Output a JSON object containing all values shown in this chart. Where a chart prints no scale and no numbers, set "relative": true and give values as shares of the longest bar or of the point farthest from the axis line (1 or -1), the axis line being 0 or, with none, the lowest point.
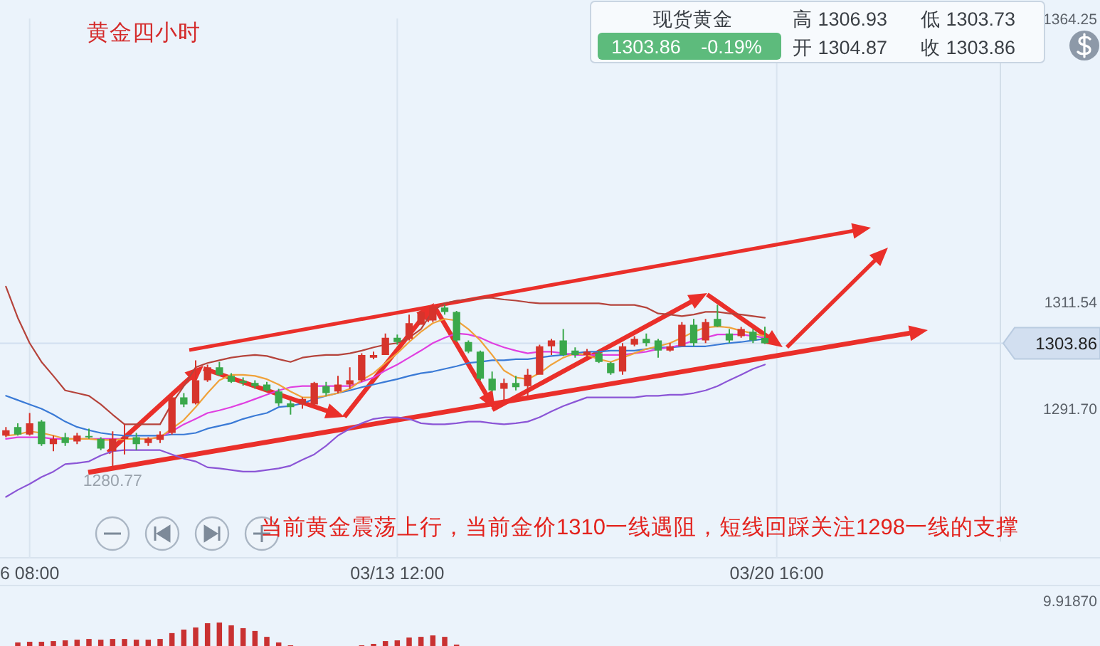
{
  "chart_data": [
    {
      "type": "candlestick",
      "title": "黄金四小时",
      "categories": [
        null,
        null,
        "6 08:00",
        null,
        null,
        null,
        null,
        null,
        null,
        null,
        null,
        null,
        null,
        null,
        null,
        null,
        null,
        null,
        null,
        null,
        null,
        null,
        null,
        null,
        null,
        null,
        null,
        null,
        null,
        null,
        null,
        null,
        null,
        "03/13 12:00",
        null,
        null,
        null,
        null,
        null,
        null,
        null,
        null,
        null,
        null,
        null,
        null,
        null,
        null,
        null,
        null,
        null,
        null,
        null,
        null,
        null,
        null,
        null,
        null,
        null,
        null,
        null,
        null,
        null,
        null,
        null,
        "03/20 16:00",
        null,
        null,
        null,
        null,
        null,
        null,
        null,
        null,
        null,
        null,
        null,
        null,
        null,
        null,
        null,
        null,
        null,
        null
      ],
      "ohlc": [
        [
          1286.7,
          1288.3,
          1286.4,
          1287.7
        ],
        [
          1288.3,
          1289.0,
          1286.7,
          1286.9
        ],
        [
          1286.9,
          1290.9,
          1286.7,
          1289.0
        ],
        [
          1289.3,
          1289.6,
          1284.8,
          1285.1
        ],
        [
          1285.1,
          1286.7,
          1283.8,
          1286.1
        ],
        [
          1286.4,
          1287.2,
          1284.8,
          1285.3
        ],
        [
          1285.6,
          1287.2,
          1285.1,
          1286.7
        ],
        [
          1286.6,
          1288.0,
          1286.1,
          1286.4
        ],
        [
          1286.1,
          1286.4,
          1284.0,
          1284.3
        ],
        [
          1283.8,
          1287.5,
          1280.77,
          1286.1
        ],
        [
          1286.1,
          1288.8,
          1283.2,
          1286.3
        ],
        [
          1286.4,
          1287.2,
          1284.0,
          1285.1
        ],
        [
          1285.3,
          1286.4,
          1284.8,
          1286.1
        ],
        [
          1285.9,
          1287.5,
          1285.3,
          1286.9
        ],
        [
          1287.2,
          1294.1,
          1286.9,
          1293.8
        ],
        [
          1293.8,
          1294.6,
          1292.0,
          1292.5
        ],
        [
          1292.7,
          1300.7,
          1292.5,
          1297.0
        ],
        [
          1297.0,
          1299.9,
          1296.7,
          1299.4
        ],
        [
          1299.4,
          1300.4,
          1297.8,
          1298.0
        ],
        [
          1297.8,
          1298.3,
          1296.5,
          1296.7
        ],
        [
          1296.9,
          1297.5,
          1296.0,
          1296.5
        ],
        [
          1296.5,
          1297.0,
          1295.4,
          1295.9
        ],
        [
          1296.2,
          1296.7,
          1294.9,
          1295.1
        ],
        [
          1294.9,
          1295.4,
          1292.2,
          1292.7
        ],
        [
          1292.7,
          1293.3,
          1290.6,
          1292.0
        ],
        [
          1292.5,
          1293.8,
          1291.7,
          1293.5
        ],
        [
          1292.5,
          1296.7,
          1292.2,
          1296.5
        ],
        [
          1295.9,
          1296.7,
          1294.1,
          1294.6
        ],
        [
          1294.9,
          1297.8,
          1294.6,
          1296.2
        ],
        [
          1296.2,
          1299.4,
          1295.4,
          1297.0
        ],
        [
          1297.0,
          1302.0,
          1296.7,
          1301.7
        ],
        [
          1301.2,
          1302.3,
          1300.9,
          1301.7
        ],
        [
          1301.7,
          1305.7,
          1301.7,
          1304.9
        ],
        [
          1304.9,
          1305.5,
          1303.6,
          1304.1
        ],
        [
          1304.7,
          1309.2,
          1304.4,
          1307.6
        ],
        [
          1307.3,
          1309.9,
          1307.3,
          1309.7
        ],
        [
          1308.1,
          1311.0,
          1307.8,
          1310.7
        ],
        [
          1310.5,
          1311.0,
          1309.2,
          1309.7
        ],
        [
          1309.7,
          1309.9,
          1304.1,
          1304.4
        ],
        [
          1304.1,
          1304.4,
          1302.0,
          1302.3
        ],
        [
          1302.3,
          1302.5,
          1297.0,
          1297.3
        ],
        [
          1297.3,
          1298.6,
          1294.9,
          1295.1
        ],
        [
          1295.4,
          1297.3,
          1293.3,
          1296.5
        ],
        [
          1296.5,
          1297.8,
          1295.1,
          1295.7
        ],
        [
          1295.9,
          1299.1,
          1294.1,
          1298.0
        ],
        [
          1298.0,
          1303.6,
          1298.0,
          1303.3
        ],
        [
          1303.3,
          1304.7,
          1301.7,
          1304.4
        ],
        [
          1304.4,
          1306.5,
          1301.5,
          1301.7
        ],
        [
          1302.5,
          1303.1,
          1301.2,
          1301.7
        ],
        [
          1301.7,
          1302.8,
          1301.2,
          1302.3
        ],
        [
          1302.0,
          1302.5,
          1300.2,
          1300.4
        ],
        [
          1300.2,
          1300.4,
          1298.0,
          1298.3
        ],
        [
          1298.6,
          1303.9,
          1298.0,
          1303.3
        ],
        [
          1303.6,
          1305.2,
          1303.3,
          1304.7
        ],
        [
          1304.7,
          1305.7,
          1303.3,
          1303.9
        ],
        [
          1304.4,
          1304.7,
          1301.2,
          1302.5
        ],
        [
          1302.5,
          1303.9,
          1302.3,
          1303.3
        ],
        [
          1303.3,
          1307.8,
          1303.3,
          1307.3
        ],
        [
          1307.3,
          1308.4,
          1303.3,
          1303.9
        ],
        [
          1304.4,
          1308.4,
          1303.9,
          1307.8
        ],
        [
          1308.4,
          1311.0,
          1306.9,
          1307.0
        ],
        [
          1305.7,
          1306.5,
          1303.9,
          1304.4
        ],
        [
          1305.2,
          1306.9,
          1304.9,
          1306.5
        ],
        [
          1306.0,
          1306.5,
          1303.9,
          1304.4
        ],
        [
          1304.87,
          1306.93,
          1303.73,
          1303.86
        ],
        null,
        null,
        null,
        null,
        null,
        null,
        null,
        null,
        null,
        null,
        null,
        null,
        null,
        null,
        null,
        null,
        null,
        null,
        null
      ],
      "colors": [
        "#d6342c",
        "#3aa84b",
        "#d6342c",
        "#3aa84b",
        "#d6342c",
        "#3aa84b",
        "#d6342c",
        "#3aa84b",
        "#3aa84b",
        "#d6342c",
        "#d6342c",
        "#3aa84b",
        "#d6342c",
        "#d6342c",
        "#d6342c",
        "#3aa84b",
        "#d6342c",
        "#d6342c",
        "#3aa84b",
        "#3aa84b",
        "#3aa84b",
        "#3aa84b",
        "#3aa84b",
        "#3aa84b",
        "#3aa84b",
        "#d6342c",
        "#d6342c",
        "#3aa84b",
        "#d6342c",
        "#d6342c",
        "#d6342c",
        "#d6342c",
        "#d6342c",
        "#3aa84b",
        "#d6342c",
        "#d6342c",
        "#d6342c",
        "#3aa84b",
        "#3aa84b",
        "#3aa84b",
        "#3aa84b",
        "#3aa84b",
        "#d6342c",
        "#3aa84b",
        "#d6342c",
        "#d6342c",
        "#d6342c",
        "#3aa84b",
        "#3aa84b",
        "#d6342c",
        "#3aa84b",
        "#3aa84b",
        "#d6342c",
        "#d6342c",
        "#3aa84b",
        "#3aa84b",
        "#d6342c",
        "#d6342c",
        "#3aa84b",
        "#d6342c",
        "#3aa84b",
        "#3aa84b",
        "#d6342c",
        "#3aa84b",
        "#3aa84b",
        null,
        null,
        null,
        null,
        null,
        null,
        null,
        null,
        null,
        null,
        null,
        null,
        null,
        null,
        null,
        null,
        null,
        null,
        null
      ],
      "series": [
        {
          "type": "line",
          "color": "#b5433b",
          "values": [
            1314.4,
            1308.6,
            1303.9,
            1300.4,
            1297.8,
            1295.1,
            1294.6,
            1294.1,
            1292.5,
            1290.6,
            1288.8,
            1288.8,
            1288.8,
            1288.8,
            1292.7,
            1295.9,
            1299.4,
            1300.2,
            1300.7,
            1301.2,
            1301.5,
            1301.7,
            1301.5,
            1300.9,
            1300.4,
            1301.2,
            1301.5,
            1301.7,
            1301.7,
            1302.0,
            1302.5,
            1303.1,
            1303.6,
            1303.9,
            1304.9,
            1306.5,
            1309.9,
            1311.3,
            1311.8,
            1312.0,
            1312.3,
            1312.3,
            1312.0,
            1311.8,
            1311.5,
            1311.3,
            1311.3,
            1311.3,
            1311.3,
            1311.3,
            1311.3,
            1311.0,
            1311.0,
            1311.0,
            1310.5,
            1309.4,
            1309.2,
            1308.9,
            1309.2,
            1309.7,
            1309.7,
            1309.4,
            1309.2,
            1308.9,
            1308.6,
            null,
            null,
            null,
            null,
            null,
            null,
            null,
            null,
            null,
            null,
            null,
            null,
            null,
            null,
            null,
            null,
            null,
            null,
            null
          ]
        },
        {
          "type": "line",
          "color": "#8b55d6",
          "values": [
            1275.3,
            1276.6,
            1277.7,
            1279.0,
            1280.0,
            1281.4,
            1281.6,
            1281.9,
            1283.0,
            1283.8,
            1284.0,
            1284.0,
            1284.0,
            1284.0,
            1283.2,
            1282.4,
            1281.9,
            1280.8,
            1280.6,
            1280.3,
            1280.0,
            1280.0,
            1280.3,
            1280.6,
            1281.1,
            1282.2,
            1283.2,
            1284.8,
            1286.7,
            1288.0,
            1289.0,
            1289.8,
            1290.1,
            1290.1,
            1289.8,
            1289.0,
            1288.8,
            1288.8,
            1289.0,
            1289.3,
            1289.3,
            1289.0,
            1288.8,
            1289.0,
            1289.3,
            1290.1,
            1291.2,
            1292.2,
            1293.0,
            1293.8,
            1293.8,
            1293.8,
            1293.8,
            1293.8,
            1294.1,
            1294.1,
            1294.3,
            1294.3,
            1294.6,
            1295.1,
            1295.9,
            1297.0,
            1298.0,
            1299.1,
            1299.9,
            null,
            null,
            null,
            null,
            null,
            null,
            null,
            null,
            null,
            null,
            null,
            null,
            null,
            null,
            null,
            null,
            null,
            null,
            null
          ]
        },
        {
          "type": "line",
          "color": "#3a7ad6",
          "values": [
            1294.1,
            1293.3,
            1292.5,
            1291.7,
            1290.6,
            1289.3,
            1288.3,
            1287.7,
            1287.2,
            1286.9,
            1286.7,
            1286.7,
            1286.7,
            1286.7,
            1286.9,
            1286.9,
            1287.2,
            1288.0,
            1288.5,
            1289.0,
            1289.8,
            1290.4,
            1290.9,
            1292.0,
            1292.2,
            1292.7,
            1293.5,
            1294.1,
            1294.6,
            1295.1,
            1295.7,
            1296.2,
            1296.7,
            1297.2,
            1297.8,
            1298.3,
            1298.6,
            1299.1,
            1299.6,
            1300.2,
            1300.4,
            1300.7,
            1300.7,
            1300.9,
            1300.9,
            1301.2,
            1301.5,
            1301.7,
            1302.0,
            1302.3,
            1302.3,
            1302.5,
            1302.5,
            1302.5,
            1302.8,
            1303.1,
            1303.1,
            1303.3,
            1303.3,
            1303.3,
            1303.6,
            1303.9,
            1304.1,
            1304.4,
            1304.7,
            null,
            null,
            null,
            null,
            null,
            null,
            null,
            null,
            null,
            null,
            null,
            null,
            null,
            null,
            null,
            null,
            null,
            null,
            null
          ]
        },
        {
          "type": "line",
          "color": "#e03fe0",
          "values": [
            1286.1,
            1286.4,
            1286.4,
            1286.4,
            1286.1,
            1286.1,
            1286.1,
            1286.1,
            1286.1,
            1286.1,
            1286.1,
            1286.1,
            1286.1,
            1286.4,
            1287.5,
            1288.8,
            1289.8,
            1290.9,
            1291.4,
            1292.0,
            1292.7,
            1293.5,
            1294.3,
            1295.1,
            1295.7,
            1295.9,
            1295.9,
            1295.9,
            1295.9,
            1295.9,
            1296.7,
            1297.5,
            1298.8,
            1299.9,
            1301.2,
            1302.5,
            1303.9,
            1304.9,
            1305.7,
            1305.5,
            1304.9,
            1303.9,
            1303.1,
            1302.5,
            1302.0,
            1302.3,
            1302.3,
            1302.0,
            1301.7,
            1301.7,
            1301.7,
            1301.7,
            1301.7,
            1302.0,
            1302.3,
            1302.8,
            1303.1,
            1303.6,
            1304.4,
            1304.9,
            1305.5,
            1305.5,
            1305.5,
            1305.2,
            1304.9,
            null,
            null,
            null,
            null,
            null,
            null,
            null,
            null,
            null,
            null,
            null,
            null,
            null,
            null,
            null,
            null,
            null,
            null,
            null
          ]
        },
        {
          "type": "line",
          "color": "#f0a23a",
          "values": [
            1286.7,
            1286.9,
            1287.5,
            1287.2,
            1286.7,
            1286.1,
            1286.1,
            1286.1,
            1285.9,
            1285.9,
            1286.1,
            1286.1,
            1286.1,
            1286.4,
            1288.0,
            1289.6,
            1292.0,
            1294.6,
            1297.0,
            1298.0,
            1298.0,
            1297.8,
            1297.2,
            1296.2,
            1294.9,
            1293.8,
            1293.8,
            1294.1,
            1294.6,
            1295.4,
            1297.0,
            1298.3,
            1300.2,
            1302.0,
            1304.1,
            1306.0,
            1307.6,
            1308.4,
            1308.1,
            1306.5,
            1304.4,
            1301.7,
            1298.8,
            1297.5,
            1297.2,
            1298.3,
            1299.9,
            1301.2,
            1302.0,
            1301.7,
            1300.9,
            1300.4,
            1301.2,
            1302.0,
            1302.8,
            1303.3,
            1303.9,
            1304.9,
            1306.0,
            1306.8,
            1307.0,
            1306.8,
            1306.2,
            1305.7,
            1305.2,
            null,
            null,
            null,
            null,
            null,
            null,
            null,
            null,
            null,
            null,
            null,
            null,
            null,
            null,
            null,
            null,
            null,
            null,
            null
          ]
        }
      ],
      "ylim": [
        1267,
        1364.25
      ],
      "yticks": [
        1364.25,
        1311.54,
        {
          "value": 1291.7,
          "label": "1291.70"
        }
      ],
      "ref_lines": [
        {
          "axis": "y",
          "value": 1303.86,
          "label": "1303.86",
          "color": "#d2dff0"
        }
      ],
      "grid": "x",
      "annotations": [
        "现货黄金",
        "1303.86",
        "-0.19%",
        "高 1306.93",
        "低 1303.73",
        "开 1304.87",
        "收 1303.86",
        "当前黄金震荡上行，当前金价1310一线遇阻，短线回踩关注1298一线的支撑",
        {
          "text": "1280.77",
          "y": 1280.77
        }
      ]
    },
    {
      "type": "bar",
      "relative": true,
      "color": "#c93131",
      "categories": [
        null,
        null,
        null,
        null,
        null,
        null,
        null,
        null,
        null,
        null,
        null,
        null,
        null,
        null,
        null,
        null,
        null,
        null,
        null,
        null,
        null,
        null,
        null,
        null,
        null,
        null,
        null,
        null,
        null,
        null,
        null,
        null,
        null,
        null,
        null,
        null,
        null,
        null,
        null,
        null,
        null,
        null,
        null,
        null,
        null,
        null,
        null,
        null,
        null,
        null,
        null,
        null,
        null,
        null,
        null,
        null,
        null,
        null,
        null,
        null,
        null,
        null,
        null,
        null,
        null,
        null,
        null,
        null,
        null,
        null,
        null,
        null,
        null,
        null,
        null,
        null,
        null,
        null,
        null,
        null,
        null,
        null,
        null,
        null
      ],
      "values": [
        null,
        0.15,
        0.18,
        0.18,
        0.21,
        0.24,
        0.27,
        0.3,
        0.27,
        0.3,
        0.3,
        0.27,
        0.27,
        0.3,
        0.55,
        0.7,
        0.79,
        0.97,
        1,
        0.88,
        0.76,
        0.64,
        0.39,
        0.15,
        0.03,
        null,
        null,
        null,
        null,
        null,
        0.03,
        0.09,
        0.21,
        0.24,
        0.36,
        0.39,
        0.45,
        0.39,
        0.06,
        null,
        null,
        null,
        null,
        null,
        null,
        null,
        null,
        null,
        null,
        null,
        null,
        null,
        null,
        null,
        null,
        null,
        null,
        null,
        null,
        null,
        null,
        null,
        null,
        null,
        null,
        null,
        null,
        null,
        null,
        null,
        null,
        null,
        null,
        null,
        null,
        null,
        null,
        null,
        null,
        null,
        null,
        null,
        null,
        null
      ],
      "annotations": [
        "9.91870"
      ]
    }
  ]
}
